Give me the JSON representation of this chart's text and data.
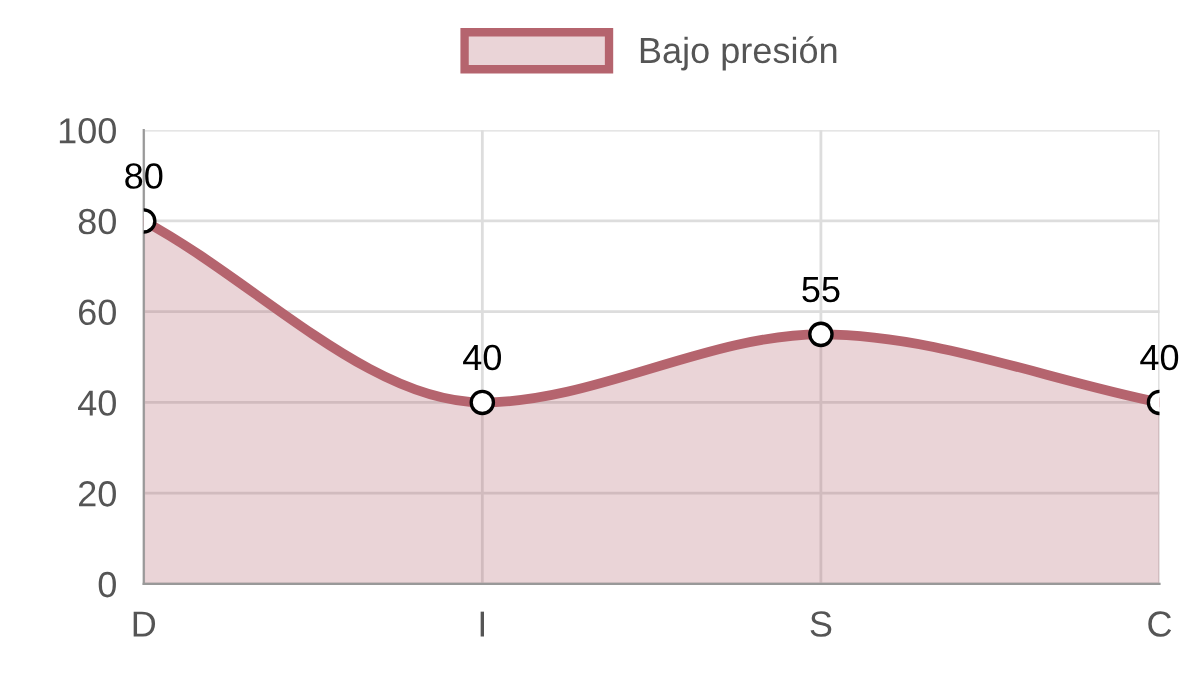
{
  "chart_data": {
    "type": "area",
    "categories": [
      "D",
      "I",
      "S",
      "C"
    ],
    "series": [
      {
        "name": "Bajo presión",
        "color": "#b5646e",
        "values": [
          80,
          40,
          55,
          40
        ]
      }
    ],
    "ylim": [
      0,
      100
    ],
    "yticks": [
      0,
      20,
      40,
      60,
      80,
      100
    ],
    "grid": true,
    "legend": "top",
    "marker": "circle",
    "data_labels": true
  }
}
